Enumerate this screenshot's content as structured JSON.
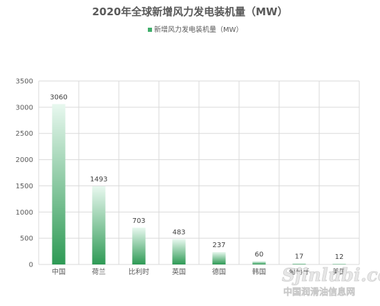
{
  "chart_data": {
    "type": "bar",
    "title": "2020年全球新增风力发电装机量（MW）",
    "categories": [
      "中国",
      "荷兰",
      "比利时",
      "英国",
      "德国",
      "韩国",
      "葡萄牙",
      "美国"
    ],
    "series": [
      {
        "name": "新增风力发电装机量（MW）",
        "values": [
          3060,
          1493,
          703,
          483,
          237,
          60,
          17,
          12
        ]
      }
    ],
    "value_labels": [
      "3060",
      "1493",
      "703",
      "483",
      "237",
      "60",
      "17",
      "12"
    ],
    "yticks": [
      0,
      500,
      1000,
      1500,
      2000,
      2500,
      3000,
      3500
    ],
    "ylim": [
      0,
      3500
    ],
    "xlabel": "",
    "ylabel": "",
    "grid": true,
    "legend_position": "top-center",
    "colors": {
      "bar_top": "#e8f8ef",
      "bar_bottom": "#2e9a55",
      "legend": "#3fae6a"
    }
  },
  "watermark": {
    "logo": "Sjinlubi.com",
    "caption": "中国润滑油信息网"
  }
}
